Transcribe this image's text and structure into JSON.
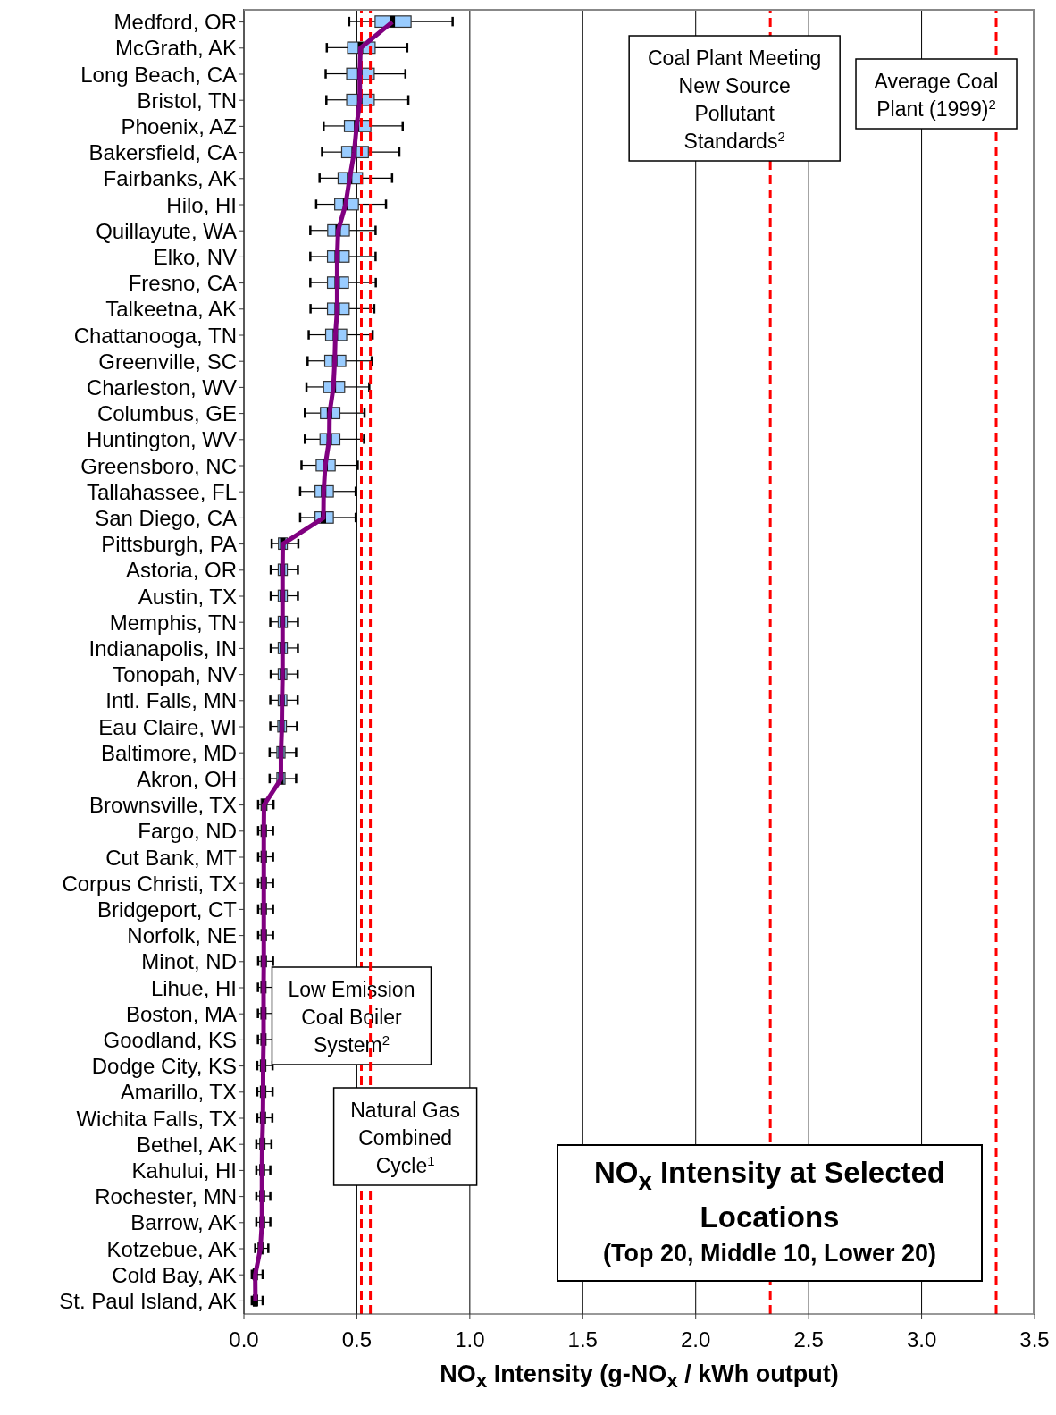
{
  "chart_data": {
    "type": "box",
    "orientation": "horizontal",
    "title": "NO$_{x}$ Intensity at Selected Locations",
    "subtitle": "(Top 20, Middle 10, Lower 20)",
    "xlabel": "NO$_{x}$ Intensity (g-NO$_{x}$ / kWh output)",
    "categories": [
      "Medford, OR",
      "McGrath, AK",
      "Long Beach, CA",
      "Bristol, TN",
      "Phoenix, AZ",
      "Bakersfield, CA",
      "Fairbanks, AK",
      "Hilo, HI",
      "Quillayute, WA",
      "Elko, NV",
      "Fresno, CA",
      "Talkeetna, AK",
      "Chattanooga, TN",
      "Greenville, SC",
      "Charleston, WV",
      "Columbus, GE",
      "Huntington, WV",
      "Greensboro, NC",
      "Tallahassee, FL",
      "San Diego, CA",
      "Pittsburgh, PA",
      "Astoria, OR",
      "Austin, TX",
      "Memphis, TN",
      "Indianapolis, IN",
      "Tonopah, NV",
      "Intl. Falls, MN",
      "Eau Claire, WI",
      "Baltimore, MD",
      "Akron, OH",
      "Brownsville, TX",
      "Fargo, ND",
      "Cut Bank, MT",
      "Corpus Christi, TX",
      "Bridgeport, CT",
      "Norfolk, NE",
      "Minot, ND",
      "Lihue, HI",
      "Boston, MA",
      "Goodland, KS",
      "Dodge City, KS",
      "Amarillo, TX",
      "Wichita Falls, TX",
      "Bethel, AK",
      "Kahului, HI",
      "Rochester, MN",
      "Barrow, AK",
      "Kotzebue, AK",
      "Cold Bay, AK",
      "St. Paul Island, AK"
    ],
    "series": [
      {
        "color": "#99ccff",
        "boxes": [
          {
            "low": 0.466,
            "q1": 0.581,
            "median": 0.657,
            "q3": 0.74,
            "high": 0.924
          },
          {
            "low": 0.367,
            "q1": 0.459,
            "median": 0.516,
            "q3": 0.581,
            "high": 0.723
          },
          {
            "low": 0.362,
            "q1": 0.455,
            "median": 0.513,
            "q3": 0.577,
            "high": 0.715
          },
          {
            "low": 0.365,
            "q1": 0.455,
            "median": 0.513,
            "q3": 0.577,
            "high": 0.728
          },
          {
            "low": 0.353,
            "q1": 0.445,
            "median": 0.499,
            "q3": 0.562,
            "high": 0.703
          },
          {
            "low": 0.346,
            "q1": 0.433,
            "median": 0.488,
            "q3": 0.551,
            "high": 0.688
          },
          {
            "low": 0.335,
            "q1": 0.417,
            "median": 0.468,
            "q3": 0.525,
            "high": 0.656
          },
          {
            "low": 0.32,
            "q1": 0.402,
            "median": 0.45,
            "q3": 0.507,
            "high": 0.629
          },
          {
            "low": 0.294,
            "q1": 0.371,
            "median": 0.417,
            "q3": 0.467,
            "high": 0.583
          },
          {
            "low": 0.294,
            "q1": 0.37,
            "median": 0.413,
            "q3": 0.466,
            "high": 0.583
          },
          {
            "low": 0.294,
            "q1": 0.37,
            "median": 0.413,
            "q3": 0.463,
            "high": 0.584
          },
          {
            "low": 0.295,
            "q1": 0.37,
            "median": 0.413,
            "q3": 0.466,
            "high": 0.577
          },
          {
            "low": 0.287,
            "q1": 0.362,
            "median": 0.405,
            "q3": 0.455,
            "high": 0.57
          },
          {
            "low": 0.282,
            "q1": 0.358,
            "median": 0.402,
            "q3": 0.451,
            "high": 0.566
          },
          {
            "low": 0.277,
            "q1": 0.353,
            "median": 0.396,
            "q3": 0.446,
            "high": 0.555
          },
          {
            "low": 0.27,
            "q1": 0.339,
            "median": 0.379,
            "q3": 0.425,
            "high": 0.534
          },
          {
            "low": 0.27,
            "q1": 0.337,
            "median": 0.378,
            "q3": 0.425,
            "high": 0.532
          },
          {
            "low": 0.255,
            "q1": 0.32,
            "median": 0.36,
            "q3": 0.404,
            "high": 0.504
          },
          {
            "low": 0.249,
            "q1": 0.315,
            "median": 0.353,
            "q3": 0.396,
            "high": 0.495
          },
          {
            "low": 0.249,
            "q1": 0.315,
            "median": 0.352,
            "q3": 0.396,
            "high": 0.495
          },
          {
            "low": 0.123,
            "q1": 0.153,
            "median": 0.172,
            "q3": 0.192,
            "high": 0.241
          },
          {
            "low": 0.119,
            "q1": 0.152,
            "median": 0.171,
            "q3": 0.192,
            "high": 0.239
          },
          {
            "low": 0.119,
            "q1": 0.152,
            "median": 0.171,
            "q3": 0.192,
            "high": 0.239
          },
          {
            "low": 0.117,
            "q1": 0.152,
            "median": 0.171,
            "q3": 0.192,
            "high": 0.239
          },
          {
            "low": 0.119,
            "q1": 0.152,
            "median": 0.171,
            "q3": 0.192,
            "high": 0.239
          },
          {
            "low": 0.119,
            "q1": 0.152,
            "median": 0.171,
            "q3": 0.19,
            "high": 0.238
          },
          {
            "low": 0.117,
            "q1": 0.152,
            "median": 0.169,
            "q3": 0.19,
            "high": 0.238
          },
          {
            "low": 0.117,
            "q1": 0.15,
            "median": 0.168,
            "q3": 0.188,
            "high": 0.235
          },
          {
            "low": 0.114,
            "q1": 0.146,
            "median": 0.164,
            "q3": 0.182,
            "high": 0.231
          },
          {
            "low": 0.114,
            "q1": 0.146,
            "median": 0.164,
            "q3": 0.182,
            "high": 0.231
          },
          {
            "low": 0.063,
            "q1": 0.076,
            "median": 0.089,
            "q3": 0.102,
            "high": 0.131
          },
          {
            "low": 0.063,
            "q1": 0.076,
            "median": 0.088,
            "q3": 0.1,
            "high": 0.129
          },
          {
            "low": 0.063,
            "q1": 0.076,
            "median": 0.088,
            "q3": 0.1,
            "high": 0.129
          },
          {
            "low": 0.063,
            "q1": 0.076,
            "median": 0.088,
            "q3": 0.1,
            "high": 0.129
          },
          {
            "low": 0.063,
            "q1": 0.076,
            "median": 0.088,
            "q3": 0.1,
            "high": 0.129
          },
          {
            "low": 0.063,
            "q1": 0.076,
            "median": 0.088,
            "q3": 0.1,
            "high": 0.129
          },
          {
            "low": 0.063,
            "q1": 0.076,
            "median": 0.088,
            "q3": 0.1,
            "high": 0.129
          },
          {
            "low": 0.062,
            "q1": 0.075,
            "median": 0.087,
            "q3": 0.098,
            "high": 0.129
          },
          {
            "low": 0.062,
            "q1": 0.075,
            "median": 0.087,
            "q3": 0.098,
            "high": 0.129
          },
          {
            "low": 0.062,
            "q1": 0.075,
            "median": 0.087,
            "q3": 0.098,
            "high": 0.129
          },
          {
            "low": 0.059,
            "q1": 0.073,
            "median": 0.085,
            "q3": 0.097,
            "high": 0.127
          },
          {
            "low": 0.059,
            "q1": 0.073,
            "median": 0.085,
            "q3": 0.097,
            "high": 0.127
          },
          {
            "low": 0.059,
            "q1": 0.073,
            "median": 0.084,
            "q3": 0.096,
            "high": 0.126
          },
          {
            "low": 0.055,
            "q1": 0.071,
            "median": 0.081,
            "q3": 0.093,
            "high": 0.122
          },
          {
            "low": 0.055,
            "q1": 0.071,
            "median": 0.08,
            "q3": 0.092,
            "high": 0.117
          },
          {
            "low": 0.055,
            "q1": 0.071,
            "median": 0.08,
            "q3": 0.092,
            "high": 0.117
          },
          {
            "low": 0.055,
            "q1": 0.071,
            "median": 0.08,
            "q3": 0.092,
            "high": 0.117
          },
          {
            "low": 0.05,
            "q1": 0.064,
            "median": 0.073,
            "q3": 0.085,
            "high": 0.108
          },
          {
            "low": 0.035,
            "q1": 0.042,
            "median": 0.05,
            "q3": 0.058,
            "high": 0.083
          },
          {
            "low": 0.035,
            "q1": 0.042,
            "median": 0.051,
            "q3": 0.059,
            "high": 0.083
          }
        ]
      },
      {
        "type": "line",
        "color": "#800080",
        "values": [
          0.657,
          0.516,
          0.513,
          0.513,
          0.499,
          0.488,
          0.468,
          0.45,
          0.417,
          0.413,
          0.413,
          0.413,
          0.405,
          0.402,
          0.396,
          0.379,
          0.378,
          0.36,
          0.353,
          0.352,
          0.172,
          0.171,
          0.171,
          0.171,
          0.171,
          0.171,
          0.169,
          0.168,
          0.164,
          0.164,
          0.089,
          0.088,
          0.088,
          0.088,
          0.088,
          0.088,
          0.088,
          0.087,
          0.087,
          0.087,
          0.085,
          0.085,
          0.084,
          0.081,
          0.08,
          0.08,
          0.08,
          0.073,
          0.05,
          0.051
        ]
      }
    ],
    "xlim": [
      0,
      3.5
    ],
    "xticks": [
      {
        "value": 0,
        "label": "0.0"
      },
      0.5,
      {
        "value": 1,
        "label": "1.0"
      },
      1.5,
      {
        "value": 2,
        "label": "2.0"
      },
      2.5,
      {
        "value": 3,
        "label": "3.0"
      },
      3.5
    ],
    "grid": "x",
    "ref_lines": [
      {
        "axis": "x",
        "value": 0.52,
        "label": "Low Emission Coal Boiler System$^{2}$",
        "color": "#ff0000",
        "line_style": "dashed"
      },
      {
        "axis": "x",
        "value": 0.56,
        "label": "Natural Gas Combined Cycle$^{1}$",
        "color": "#ff0000",
        "line_style": "dashed"
      },
      {
        "axis": "x",
        "value": 2.33,
        "label": "Coal Plant Meeting New Source Pollutant Standards$^{2}$",
        "color": "#ff0000",
        "line_style": "dashed"
      },
      {
        "axis": "x",
        "value": 3.33,
        "label": "Average Coal Plant (1999)$^{2}$",
        "color": "#ff0000",
        "line_style": "dashed"
      }
    ]
  }
}
